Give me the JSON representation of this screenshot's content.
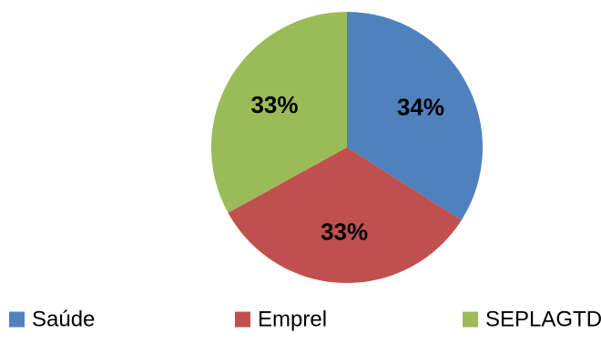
{
  "chart_data": {
    "type": "pie",
    "title": "",
    "categories": [
      "Saúde",
      "Emprel",
      "SEPLAGTD"
    ],
    "values": [
      34,
      33,
      33
    ],
    "data_labels": [
      "34%",
      "33%",
      "33%"
    ],
    "colors": [
      "#4F81BD",
      "#C0504D",
      "#9BBB59"
    ],
    "start_angle_deg": 0,
    "direction": "clockwise",
    "legend_position": "bottom"
  }
}
